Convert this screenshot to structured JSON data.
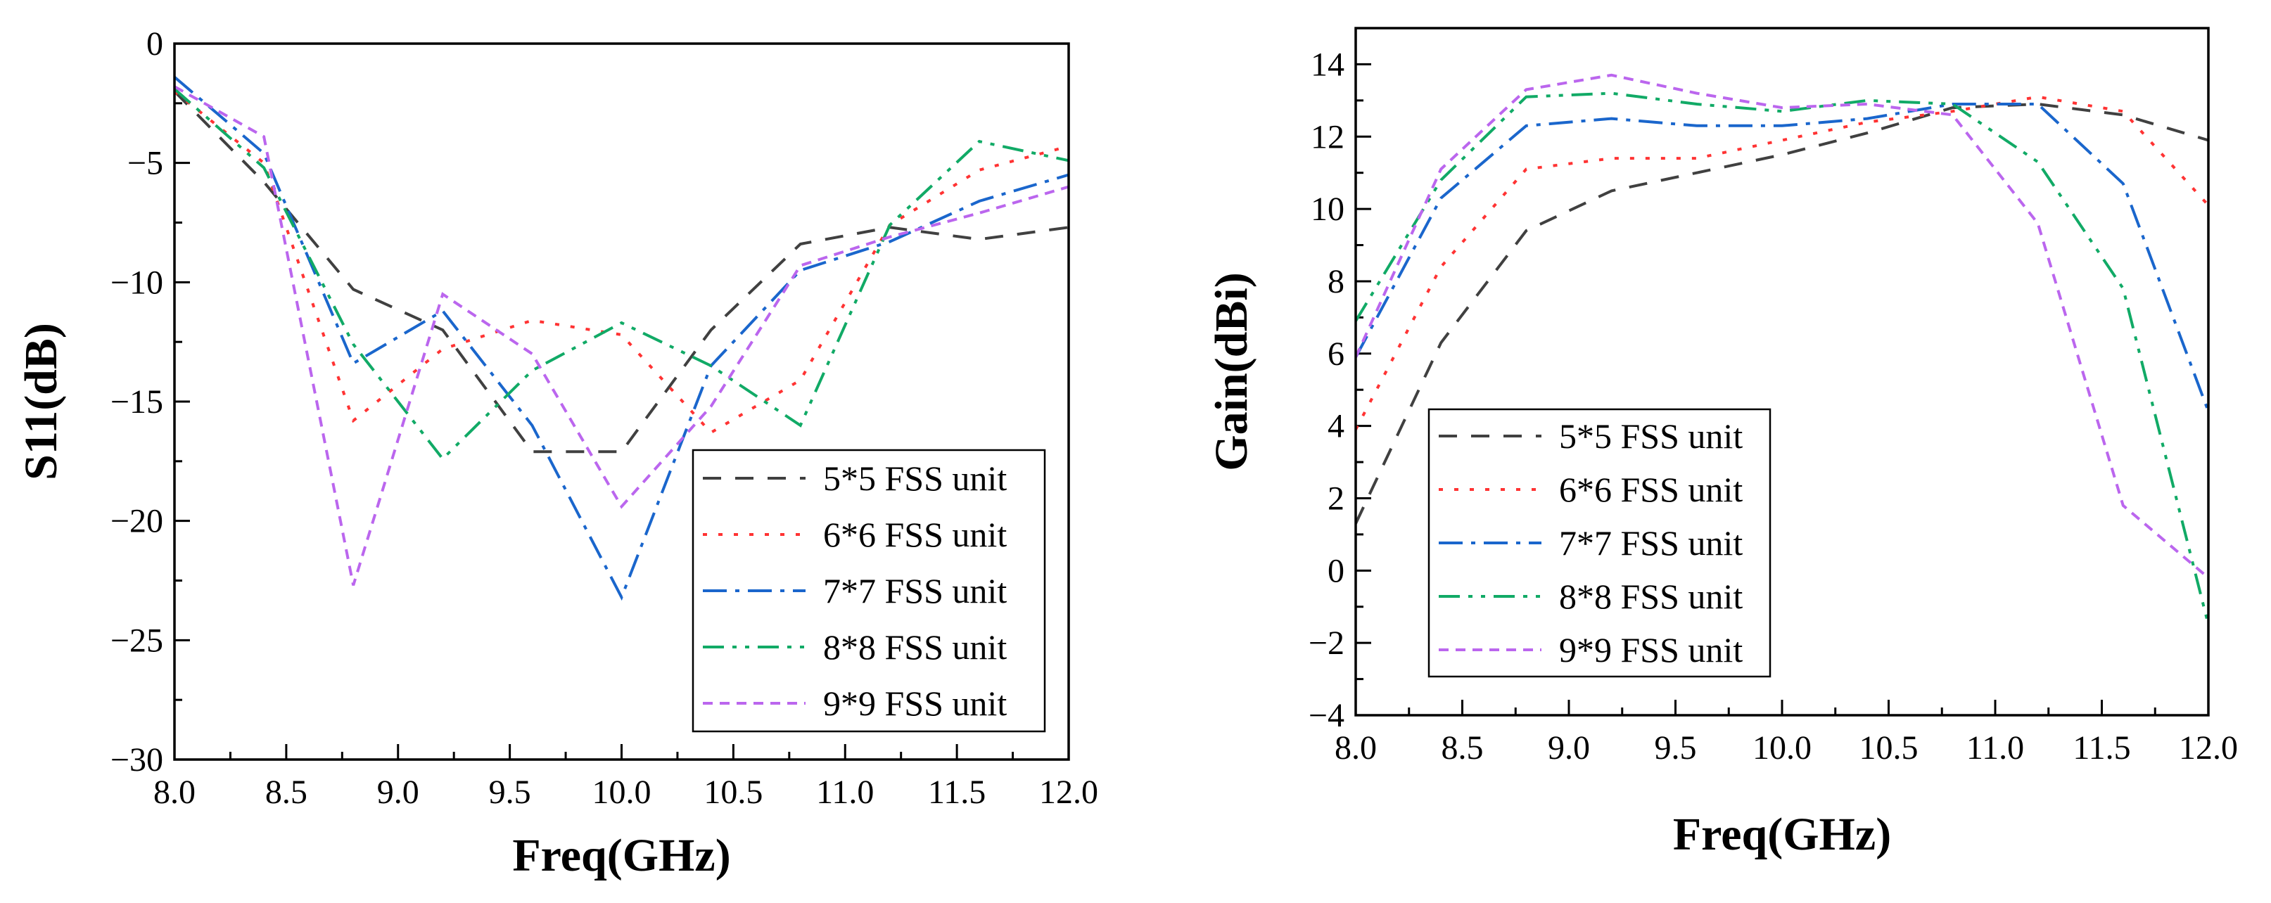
{
  "colors": {
    "5*5": "#404040",
    "6*6": "#ff3333",
    "7*7": "#1a66cc",
    "8*8": "#11aa66",
    "9*9": "#bb66ee"
  },
  "chart_data": [
    {
      "type": "line",
      "xlabel": "Freq(GHz)",
      "ylabel": "S11(dB)",
      "xlim": [
        8.0,
        12.0
      ],
      "ylim": [
        -30,
        0
      ],
      "xticks": [
        "8.0",
        "8.5",
        "9.0",
        "9.5",
        "10.0",
        "10.5",
        "11.0",
        "11.5",
        "12.0"
      ],
      "yticks": [
        "0",
        "−5",
        "−10",
        "−15",
        "−20",
        "−25",
        "−30"
      ],
      "legend_position": "bottom-right",
      "x": [
        8.0,
        8.4,
        8.8,
        9.2,
        9.6,
        10.0,
        10.4,
        10.8,
        11.2,
        11.6,
        12.0
      ],
      "series": [
        {
          "name": "5*5 FSS unit",
          "values": [
            -2.0,
            -5.8,
            -10.3,
            -12.0,
            -17.1,
            -17.1,
            -12.0,
            -8.4,
            -7.7,
            -8.2,
            -7.7
          ]
        },
        {
          "name": "6*6 FSS unit",
          "values": [
            -2.0,
            -5.0,
            -15.8,
            -12.8,
            -11.6,
            -12.2,
            -16.3,
            -14.1,
            -7.6,
            -5.3,
            -4.3
          ]
        },
        {
          "name": "7*7 FSS unit",
          "values": [
            -1.4,
            -4.6,
            -13.4,
            -11.2,
            -16.0,
            -23.2,
            -13.5,
            -9.5,
            -8.3,
            -6.6,
            -5.5
          ]
        },
        {
          "name": "8*8 FSS unit",
          "values": [
            -1.9,
            -5.2,
            -12.6,
            -17.4,
            -13.7,
            -11.7,
            -13.5,
            -16.0,
            -7.6,
            -4.1,
            -4.9
          ]
        },
        {
          "name": "9*9 FSS unit",
          "values": [
            -1.8,
            -3.9,
            -22.7,
            -10.5,
            -13.0,
            -19.4,
            -15.2,
            -9.3,
            -8.1,
            -7.1,
            -6.0
          ]
        }
      ]
    },
    {
      "type": "line",
      "xlabel": "Freq(GHz)",
      "ylabel": "Gain(dBi)",
      "xlim": [
        8.0,
        12.0
      ],
      "ylim": [
        -4,
        15
      ],
      "xticks": [
        "8.0",
        "8.5",
        "9.0",
        "9.5",
        "10.0",
        "10.5",
        "11.0",
        "11.5",
        "12.0"
      ],
      "yticks": [
        "14",
        "12",
        "10",
        "8",
        "6",
        "4",
        "2",
        "0",
        "−2",
        "−4"
      ],
      "legend_position": "bottom-left",
      "x": [
        8.0,
        8.4,
        8.8,
        9.2,
        9.6,
        10.0,
        10.4,
        10.8,
        11.2,
        11.6,
        12.0
      ],
      "series": [
        {
          "name": "5*5 FSS unit",
          "values": [
            1.3,
            6.3,
            9.4,
            10.5,
            11.0,
            11.5,
            12.1,
            12.8,
            12.9,
            12.6,
            11.9
          ]
        },
        {
          "name": "6*6 FSS unit",
          "values": [
            3.9,
            8.4,
            11.1,
            11.4,
            11.4,
            11.9,
            12.4,
            12.7,
            13.1,
            12.7,
            10.1
          ]
        },
        {
          "name": "7*7 FSS unit",
          "values": [
            5.9,
            10.3,
            12.3,
            12.5,
            12.3,
            12.3,
            12.5,
            12.9,
            12.9,
            10.7,
            4.4
          ]
        },
        {
          "name": "8*8 FSS unit",
          "values": [
            6.9,
            10.8,
            13.1,
            13.2,
            12.9,
            12.7,
            13.0,
            12.9,
            11.3,
            7.8,
            -1.5
          ]
        },
        {
          "name": "9*9 FSS unit",
          "values": [
            5.9,
            11.1,
            13.3,
            13.7,
            13.2,
            12.8,
            12.9,
            12.6,
            9.6,
            1.8,
            -0.2
          ]
        }
      ]
    }
  ]
}
